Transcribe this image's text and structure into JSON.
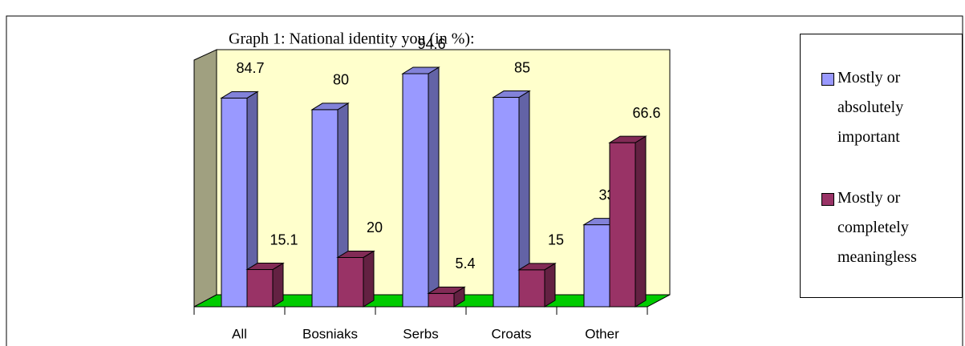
{
  "chart_data": {
    "type": "bar3d",
    "title": "Graph 1:  National  identity you (in %):",
    "categories": [
      "All",
      "Bosniaks",
      "Serbs",
      "Croats",
      "Other"
    ],
    "series": [
      {
        "name": "Mostly or absolutely important",
        "color": "#9999ff",
        "values": [
          84.7,
          80,
          94.6,
          85,
          33.3
        ]
      },
      {
        "name": "Mostly or completely meaningless",
        "color": "#993366",
        "values": [
          15.1,
          20,
          5.4,
          15,
          66.6
        ]
      }
    ],
    "legend": "right"
  }
}
